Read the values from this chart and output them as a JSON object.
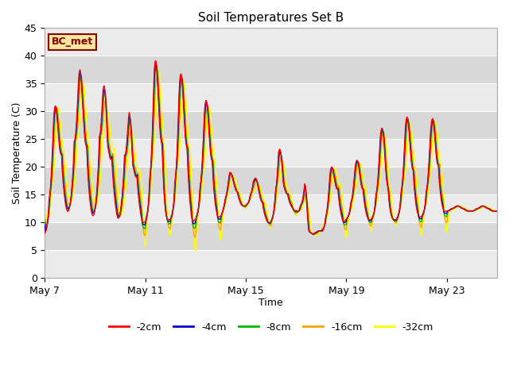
{
  "title": "Soil Temperatures Set B",
  "xlabel": "Time",
  "ylabel": "Soil Temperature (C)",
  "ylim": [
    0,
    45
  ],
  "yticks": [
    0,
    5,
    10,
    15,
    20,
    25,
    30,
    35,
    40,
    45
  ],
  "legend_label": "BC_met",
  "legend_box_color": "#f5e6a0",
  "legend_box_edge_color": "#8B0000",
  "series_colors": {
    "-2cm": "#FF0000",
    "-4cm": "#0000CD",
    "-8cm": "#00BB00",
    "-16cm": "#FFA500",
    "-32cm": "#FFFF00"
  },
  "band_colors": [
    "#EBEBEB",
    "#D8D8D8"
  ],
  "band_ranges": [
    [
      0,
      5
    ],
    [
      5,
      10
    ],
    [
      10,
      15
    ],
    [
      15,
      20
    ],
    [
      20,
      25
    ],
    [
      25,
      30
    ],
    [
      30,
      35
    ],
    [
      35,
      40
    ],
    [
      40,
      45
    ]
  ],
  "x_tick_labels": [
    "May 7",
    "May 11",
    "May 15",
    "May 19",
    "May 23"
  ],
  "x_tick_positions": [
    0,
    4,
    8,
    12,
    16
  ],
  "background_color": "#FFFFFF",
  "plot_bg_color": "#EBEBEB"
}
